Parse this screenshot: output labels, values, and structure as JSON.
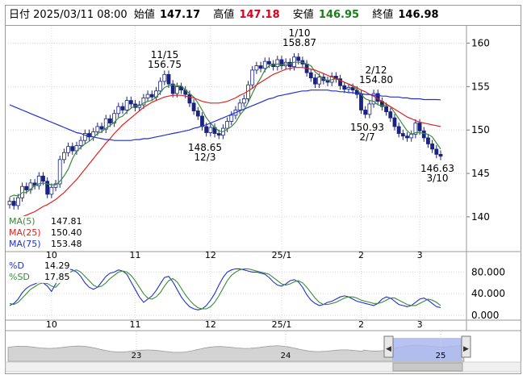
{
  "header": {
    "date_label": "日付",
    "datetime": "2025/03/11 08:00",
    "open_label": "始値",
    "open_value": "147.17",
    "high_label": "高値",
    "high_value": "147.18",
    "low_label": "安値",
    "low_value": "146.95",
    "close_label": "終値",
    "close_value": "146.98"
  },
  "colors": {
    "high": "#d9001b",
    "low": "#1b7d1b",
    "ma5": "#3b8a3b",
    "ma25": "#e02020",
    "ma75": "#2030d0",
    "candle_up": "#ffffff",
    "candle_down": "#1a237e"
  },
  "legend_ma": [
    {
      "name": "MA(5)",
      "value": "147.81",
      "color": "#3b8a3b"
    },
    {
      "name": "MA(25)",
      "value": "150.40",
      "color": "#e02020"
    },
    {
      "name": "MA(75)",
      "value": "153.48",
      "color": "#2030d0"
    }
  ],
  "legend_osc": [
    {
      "name": "%D",
      "value": "14.29",
      "color": "#2030d0"
    },
    {
      "name": "%SD",
      "value": "17.85",
      "color": "#3b8a3b"
    }
  ],
  "annotations": [
    {
      "price": "156.75",
      "date": "11/15"
    },
    {
      "price": "148.65",
      "date": "12/3"
    },
    {
      "price": "158.87",
      "date": "1/10"
    },
    {
      "price": "154.80",
      "date": "2/12"
    },
    {
      "price": "150.93",
      "date": "2/7"
    },
    {
      "price": "146.63",
      "date": "3/10"
    }
  ],
  "chart_data": [
    {
      "type": "candlestick",
      "ylim": [
        136,
        162
      ],
      "y_ticks": [
        "160",
        "155",
        "150",
        "145",
        "140"
      ],
      "x_ticks": [
        "10",
        "11",
        "12",
        "25/1",
        "2",
        "3"
      ],
      "close": [
        141.8,
        141.3,
        142.2,
        143.5,
        143.1,
        143.9,
        143.6,
        144.7,
        144.1,
        142.6,
        143.4,
        143.8,
        146.6,
        147.4,
        148.1,
        147.6,
        148.2,
        148.8,
        149.6,
        149.2,
        149.8,
        150.4,
        150.1,
        151.3,
        150.8,
        151.9,
        152.7,
        152.3,
        153.4,
        153.0,
        152.6,
        152.9,
        153.7,
        154.1,
        153.8,
        154.5,
        155.6,
        156.4,
        155.3,
        154.2,
        155.0,
        154.6,
        154.1,
        153.1,
        152.2,
        151.6,
        150.4,
        149.7,
        150.3,
        149.6,
        149.4,
        150.2,
        151.0,
        151.7,
        152.3,
        153.1,
        153.6,
        155.2,
        156.9,
        157.4,
        157.1,
        157.9,
        157.6,
        157.3,
        158.1,
        157.4,
        157.8,
        157.3,
        158.4,
        158.0,
        157.6,
        156.6,
        156.0,
        155.3,
        156.1,
        155.7,
        155.5,
        156.2,
        155.9,
        155.1,
        154.7,
        154.9,
        154.6,
        154.1,
        152.3,
        151.8,
        153.0,
        154.2,
        153.3,
        152.7,
        152.1,
        151.4,
        150.4,
        149.6,
        149.3,
        149.1,
        149.5,
        150.8,
        149.9,
        149.1,
        148.4,
        147.8,
        147.2,
        146.98
      ],
      "series": [
        {
          "name": "MA(5)",
          "values": [
            142.3,
            142.5,
            142.4,
            142.8,
            142.8,
            143.2,
            143.6,
            143.8,
            143.9,
            143.8,
            143.7,
            143.7,
            144.1,
            144.7,
            145.5,
            146.7,
            147.6,
            148.0,
            148.4,
            148.7,
            149.1,
            149.6,
            149.8,
            150.2,
            150.5,
            150.9,
            151.4,
            151.6,
            152.1,
            152.5,
            152.8,
            152.8,
            153.1,
            153.3,
            153.4,
            153.8,
            154.3,
            154.9,
            155.1,
            155.2,
            155.1,
            155.1,
            154.6,
            154.2,
            153.8,
            153.1,
            152.3,
            151.4,
            150.8,
            150.3,
            149.9,
            149.8,
            150.1,
            150.4,
            150.9,
            151.7,
            152.3,
            153.2,
            154.2,
            155.2,
            156.0,
            156.9,
            157.4,
            157.5,
            157.6,
            157.5,
            157.6,
            157.6,
            157.8,
            157.8,
            157.8,
            157.6,
            157.4,
            156.7,
            156.3,
            155.9,
            155.7,
            155.8,
            155.9,
            155.7,
            155.5,
            155.3,
            155.0,
            154.7,
            154.1,
            153.6,
            153.4,
            153.3,
            152.9,
            152.8,
            152.9,
            152.7,
            152.0,
            151.3,
            150.6,
            149.9,
            149.5,
            149.7,
            149.7,
            149.6,
            149.5,
            149.2,
            148.5,
            147.81
          ]
        },
        {
          "name": "MA(25)",
          "values": [
            139.4,
            139.6,
            139.8,
            140.0,
            140.2,
            140.4,
            140.6,
            140.9,
            141.2,
            141.4,
            141.7,
            142.0,
            142.4,
            142.8,
            143.3,
            143.8,
            144.3,
            144.9,
            145.5,
            146.1,
            146.7,
            147.3,
            147.9,
            148.5,
            149.0,
            149.6,
            150.1,
            150.6,
            151.0,
            151.4,
            151.8,
            152.2,
            152.6,
            152.9,
            153.2,
            153.4,
            153.6,
            153.8,
            153.9,
            154.0,
            154.0,
            154.0,
            153.9,
            153.8,
            153.7,
            153.5,
            153.3,
            153.2,
            153.1,
            153.1,
            153.1,
            153.2,
            153.3,
            153.5,
            153.7,
            154.0,
            154.2,
            154.5,
            154.8,
            155.2,
            155.5,
            155.8,
            156.1,
            156.4,
            156.6,
            156.8,
            157.0,
            157.1,
            157.2,
            157.2,
            157.2,
            157.1,
            157.0,
            156.9,
            156.7,
            156.5,
            156.3,
            156.1,
            155.9,
            155.7,
            155.5,
            155.3,
            155.1,
            154.9,
            154.6,
            154.4,
            154.1,
            153.9,
            153.6,
            153.3,
            153.0,
            152.7,
            152.4,
            152.1,
            151.8,
            151.5,
            151.3,
            151.1,
            150.9,
            150.8,
            150.7,
            150.6,
            150.5,
            150.4
          ]
        },
        {
          "name": "MA(75)",
          "values": [
            152.9,
            152.7,
            152.5,
            152.3,
            152.1,
            151.9,
            151.7,
            151.5,
            151.3,
            151.1,
            150.9,
            150.7,
            150.5,
            150.3,
            150.1,
            149.9,
            149.7,
            149.6,
            149.4,
            149.3,
            149.2,
            149.1,
            149.0,
            148.9,
            148.9,
            148.8,
            148.8,
            148.8,
            148.8,
            148.8,
            148.9,
            148.9,
            149.0,
            149.0,
            149.1,
            149.2,
            149.3,
            149.4,
            149.5,
            149.6,
            149.7,
            149.8,
            149.9,
            150.0,
            150.2,
            150.3,
            150.5,
            150.6,
            150.8,
            151.0,
            151.2,
            151.4,
            151.6,
            151.8,
            152.0,
            152.2,
            152.4,
            152.6,
            152.8,
            153.0,
            153.2,
            153.4,
            153.6,
            153.7,
            153.9,
            154.0,
            154.1,
            154.2,
            154.3,
            154.4,
            154.5,
            154.5,
            154.6,
            154.6,
            154.6,
            154.6,
            154.6,
            154.5,
            154.5,
            154.4,
            154.4,
            154.3,
            154.3,
            154.2,
            154.2,
            154.1,
            154.1,
            154.0,
            154.0,
            153.9,
            153.9,
            153.8,
            153.8,
            153.8,
            153.7,
            153.7,
            153.6,
            153.6,
            153.6,
            153.5,
            153.5,
            153.5,
            153.5,
            153.48
          ]
        }
      ]
    },
    {
      "type": "line",
      "ylim": [
        0,
        100
      ],
      "y_ticks": [
        "80.000",
        "40.000",
        "0.000"
      ],
      "x_ticks": [
        "10",
        "11",
        "12",
        "25/1",
        "2",
        "3"
      ],
      "series": [
        {
          "name": "%D",
          "values": [
            18,
            22,
            30,
            42,
            50,
            55,
            58,
            62,
            60,
            54,
            44,
            58,
            74,
            82,
            86,
            84,
            80,
            72,
            60,
            52,
            48,
            52,
            62,
            72,
            78,
            80,
            84,
            82,
            76,
            62,
            48,
            34,
            24,
            30,
            36,
            46,
            58,
            70,
            72,
            62,
            48,
            34,
            24,
            16,
            12,
            10,
            12,
            18,
            28,
            40,
            56,
            70,
            80,
            84,
            86,
            86,
            84,
            82,
            80,
            80,
            78,
            76,
            70,
            62,
            56,
            54,
            58,
            64,
            66,
            62,
            52,
            38,
            28,
            22,
            18,
            20,
            24,
            26,
            30,
            34,
            36,
            34,
            30,
            26,
            24,
            22,
            20,
            18,
            22,
            30,
            34,
            32,
            26,
            20,
            18,
            16,
            18,
            24,
            30,
            32,
            28,
            22,
            16,
            14.29
          ]
        },
        {
          "name": "%SD",
          "values": [
            22,
            20,
            24,
            32,
            40,
            48,
            53,
            58,
            60,
            59,
            54,
            52,
            60,
            70,
            78,
            82,
            84,
            80,
            72,
            64,
            56,
            52,
            54,
            60,
            68,
            74,
            80,
            82,
            80,
            74,
            64,
            52,
            40,
            32,
            30,
            34,
            42,
            54,
            64,
            68,
            62,
            50,
            38,
            28,
            20,
            14,
            12,
            12,
            16,
            24,
            36,
            50,
            64,
            74,
            80,
            84,
            86,
            86,
            84,
            82,
            80,
            78,
            76,
            70,
            64,
            58,
            56,
            58,
            62,
            64,
            60,
            52,
            42,
            32,
            24,
            20,
            20,
            22,
            24,
            28,
            32,
            34,
            34,
            32,
            28,
            26,
            24,
            22,
            22,
            24,
            28,
            32,
            32,
            28,
            24,
            20,
            18,
            18,
            22,
            26,
            30,
            28,
            24,
            17.85
          ]
        }
      ]
    },
    {
      "type": "area",
      "x_ticks": [
        "23",
        "24",
        "25"
      ]
    }
  ]
}
